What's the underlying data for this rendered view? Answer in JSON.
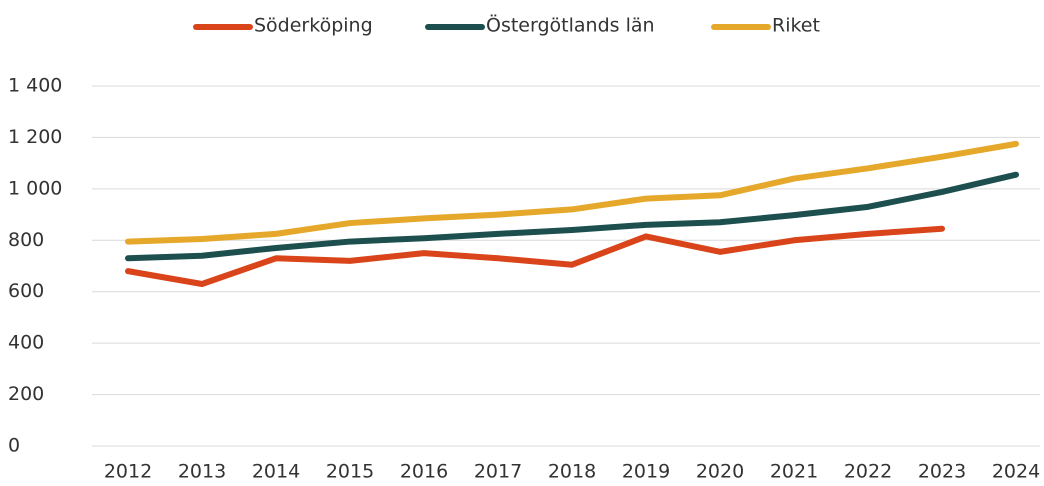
{
  "chart_data": {
    "type": "line",
    "categories": [
      "2012",
      "2013",
      "2014",
      "2015",
      "2016",
      "2017",
      "2018",
      "2019",
      "2020",
      "2021",
      "2022",
      "2023",
      "2024"
    ],
    "series": [
      {
        "name": "Söderköping",
        "color": "#d9441a",
        "values": [
          680,
          630,
          730,
          720,
          750,
          730,
          705,
          815,
          755,
          800,
          825,
          845,
          null
        ]
      },
      {
        "name": "Östergötlands län",
        "color": "#1d4f4f",
        "values": [
          730,
          740,
          770,
          795,
          808,
          825,
          840,
          860,
          870,
          898,
          930,
          988,
          1055
        ]
      },
      {
        "name": "Riket",
        "color": "#e5a82a",
        "values": [
          795,
          805,
          825,
          867,
          885,
          900,
          920,
          962,
          975,
          1040,
          1080,
          1125,
          1175
        ]
      }
    ],
    "ylim": [
      0,
      1400
    ],
    "yticks": [
      0,
      200,
      400,
      600,
      800,
      {
        "value": 1000,
        "label": "1 000"
      },
      {
        "value": 1200,
        "label": "1 200"
      },
      {
        "value": 1400,
        "label": "1 400"
      }
    ],
    "grid": true,
    "legend": "top"
  }
}
